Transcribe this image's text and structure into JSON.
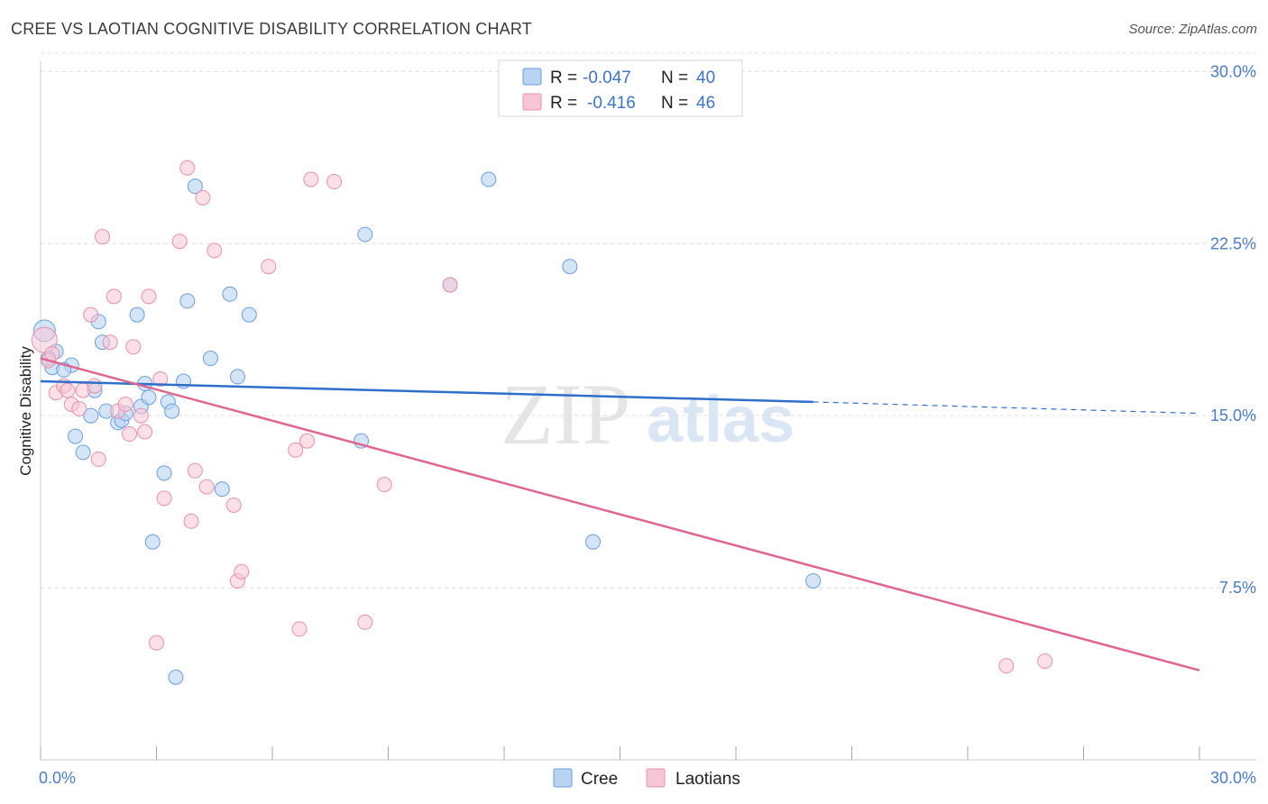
{
  "title": "CREE VS LAOTIAN COGNITIVE DISABILITY CORRELATION CHART",
  "source": "Source: ZipAtlas.com",
  "watermark": {
    "zip": "ZIP",
    "atlas": "atlas"
  },
  "legend_top": [
    {
      "r_label": "R =",
      "r_value": "-0.047",
      "n_label": "N =",
      "n_value": "40"
    },
    {
      "r_label": "R =",
      "r_value": "-0.416",
      "n_label": "N =",
      "n_value": "46"
    }
  ],
  "legend_bottom": [
    "Cree",
    "Laotians"
  ],
  "colors": {
    "cree_fill": "#b9d3f3",
    "cree_stroke": "#6a9ee0",
    "cree_line": "#2f6fcc",
    "laotian_fill": "#f7c6d4",
    "laotian_stroke": "#e890ab",
    "laotian_line": "#e06690",
    "grid": "#dddddd",
    "axis_label": "#4a7cc9"
  },
  "chart_data": {
    "type": "scatter",
    "title": "CREE VS LAOTIAN COGNITIVE DISABILITY CORRELATION CHART",
    "xlabel": "",
    "ylabel": "Cognitive Disability",
    "xlim": [
      0,
      30
    ],
    "ylim": [
      0,
      30.8
    ],
    "x_tick_labels": [
      "0.0%",
      "30.0%"
    ],
    "y_ticks": [
      7.5,
      15.0,
      22.5,
      30.0
    ],
    "y_tick_labels": [
      "7.5%",
      "15.0%",
      "22.5%",
      "30.0%"
    ],
    "series": [
      {
        "name": "Cree",
        "r": -0.047,
        "n": 40,
        "trend": {
          "x0": 0,
          "y0": 16.5,
          "x1": 20.0,
          "y1": 15.6,
          "dashed_to_x": 30,
          "dashed_to_y": 15.1
        },
        "points": [
          [
            0.1,
            18.7
          ],
          [
            0.4,
            17.8
          ],
          [
            0.3,
            17.1
          ],
          [
            0.8,
            17.2
          ],
          [
            1.5,
            19.1
          ],
          [
            1.6,
            18.2
          ],
          [
            2.5,
            19.4
          ],
          [
            1.4,
            16.1
          ],
          [
            0.6,
            17.0
          ],
          [
            0.9,
            14.1
          ],
          [
            1.1,
            13.4
          ],
          [
            1.3,
            15.0
          ],
          [
            1.7,
            15.2
          ],
          [
            2.0,
            14.7
          ],
          [
            2.1,
            14.8
          ],
          [
            2.2,
            15.1
          ],
          [
            2.6,
            15.4
          ],
          [
            2.7,
            16.4
          ],
          [
            2.8,
            15.8
          ],
          [
            3.3,
            15.6
          ],
          [
            3.4,
            15.2
          ],
          [
            3.7,
            16.5
          ],
          [
            3.8,
            20.0
          ],
          [
            4.0,
            25.0
          ],
          [
            4.4,
            17.5
          ],
          [
            4.9,
            20.3
          ],
          [
            5.1,
            16.7
          ],
          [
            5.4,
            19.4
          ],
          [
            3.2,
            12.5
          ],
          [
            4.7,
            11.8
          ],
          [
            2.9,
            9.5
          ],
          [
            3.5,
            3.6
          ],
          [
            8.4,
            22.9
          ],
          [
            8.3,
            13.9
          ],
          [
            10.6,
            20.7
          ],
          [
            11.6,
            25.3
          ],
          [
            13.7,
            21.5
          ],
          [
            14.3,
            9.5
          ],
          [
            20.0,
            7.8
          ],
          [
            0.2,
            17.5
          ]
        ]
      },
      {
        "name": "Laotians",
        "r": -0.416,
        "n": 46,
        "trend": {
          "x0": 0,
          "y0": 17.5,
          "x1": 30,
          "y1": 3.9
        },
        "points": [
          [
            0.1,
            18.3
          ],
          [
            0.2,
            17.4
          ],
          [
            0.3,
            17.7
          ],
          [
            0.4,
            16.0
          ],
          [
            0.6,
            16.3
          ],
          [
            0.7,
            16.1
          ],
          [
            0.8,
            15.5
          ],
          [
            1.0,
            15.3
          ],
          [
            1.1,
            16.1
          ],
          [
            1.3,
            19.4
          ],
          [
            1.4,
            16.3
          ],
          [
            1.5,
            13.1
          ],
          [
            1.6,
            22.8
          ],
          [
            1.8,
            18.2
          ],
          [
            1.9,
            20.2
          ],
          [
            2.0,
            15.2
          ],
          [
            2.2,
            15.5
          ],
          [
            2.3,
            14.2
          ],
          [
            2.4,
            18.0
          ],
          [
            2.6,
            15.0
          ],
          [
            2.7,
            14.3
          ],
          [
            2.8,
            20.2
          ],
          [
            3.0,
            5.1
          ],
          [
            3.1,
            16.6
          ],
          [
            3.2,
            11.4
          ],
          [
            3.6,
            22.6
          ],
          [
            3.8,
            25.8
          ],
          [
            3.9,
            10.4
          ],
          [
            4.0,
            12.6
          ],
          [
            4.2,
            24.5
          ],
          [
            4.3,
            11.9
          ],
          [
            4.5,
            22.2
          ],
          [
            5.0,
            11.1
          ],
          [
            5.1,
            7.8
          ],
          [
            5.2,
            8.2
          ],
          [
            5.9,
            21.5
          ],
          [
            6.6,
            13.5
          ],
          [
            6.7,
            5.7
          ],
          [
            6.9,
            13.9
          ],
          [
            7.0,
            25.3
          ],
          [
            7.6,
            25.2
          ],
          [
            8.4,
            6.0
          ],
          [
            8.9,
            12.0
          ],
          [
            10.6,
            20.7
          ],
          [
            25.0,
            4.1
          ],
          [
            26.0,
            4.3
          ]
        ]
      }
    ]
  }
}
